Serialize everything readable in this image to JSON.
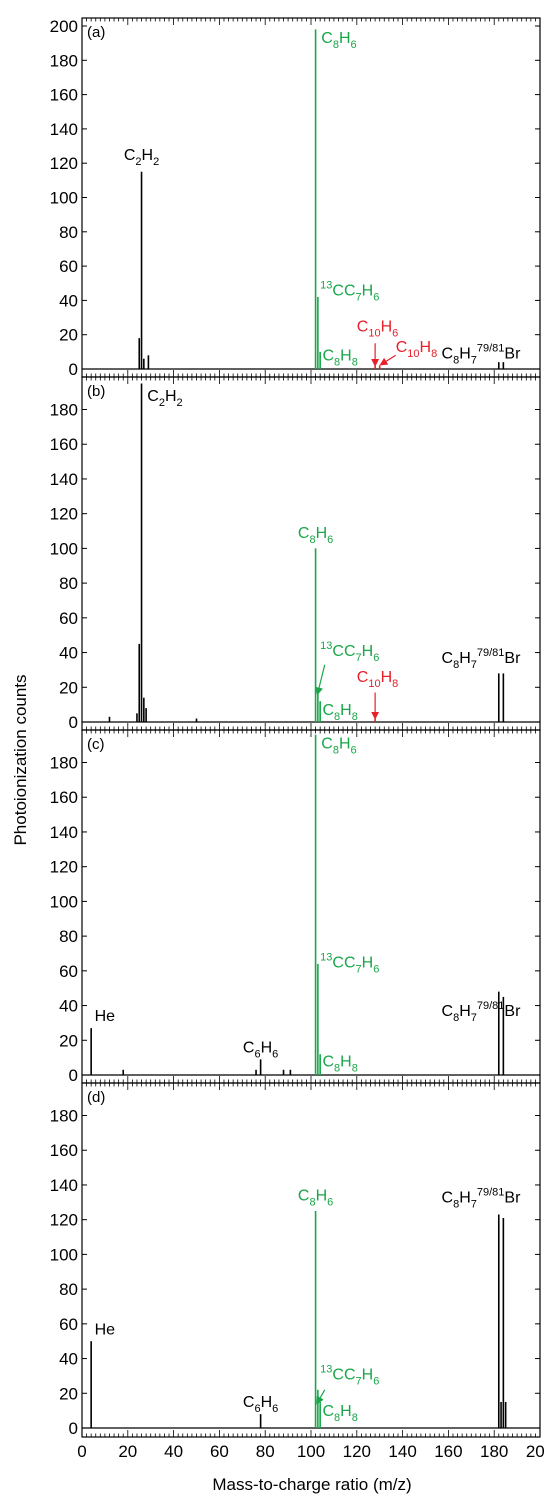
{
  "figure": {
    "ylabel": "Photoionization counts",
    "xlabel": "Mass-to-charge ratio (m/z)"
  },
  "colors": {
    "black": "#000000",
    "green": "#1aa64a",
    "red": "#e8202a"
  },
  "chart_data": [
    {
      "type": "line",
      "panel": "(a)",
      "xlim": [
        0,
        200
      ],
      "ylim": [
        0,
        200
      ],
      "yticks": [
        0,
        20,
        40,
        60,
        80,
        100,
        120,
        140,
        160,
        180,
        200
      ],
      "xticks": [
        0,
        20,
        40,
        60,
        80,
        100,
        120,
        140,
        160,
        180,
        200
      ],
      "show_xtick_labels": false,
      "peaks": [
        {
          "x": 25,
          "y": 18,
          "color": "black"
        },
        {
          "x": 26,
          "y": 115,
          "color": "black"
        },
        {
          "x": 27,
          "y": 6,
          "color": "black"
        },
        {
          "x": 29,
          "y": 8,
          "color": "black"
        },
        {
          "x": 102,
          "y": 198,
          "color": "green"
        },
        {
          "x": 103,
          "y": 42,
          "color": "green"
        },
        {
          "x": 104,
          "y": 10,
          "color": "green"
        },
        {
          "x": 128,
          "y": 2,
          "color": "red"
        },
        {
          "x": 130,
          "y": 2,
          "color": "red"
        },
        {
          "x": 182,
          "y": 4,
          "color": "black"
        },
        {
          "x": 184,
          "y": 4,
          "color": "black"
        }
      ],
      "labels": [
        {
          "parts": [
            [
              "C",
              ""
            ],
            [
              "2",
              "sub"
            ],
            [
              "H",
              ""
            ],
            [
              "2",
              "sub"
            ]
          ],
          "x": 26,
          "y": 122,
          "color": "black",
          "anchor": "middle"
        },
        {
          "parts": [
            [
              "C",
              ""
            ],
            [
              "8",
              "sub"
            ],
            [
              "H",
              ""
            ],
            [
              "6",
              "sub"
            ]
          ],
          "x": 104.5,
          "y": 190,
          "color": "green",
          "anchor": "start"
        },
        {
          "parts": [
            [
              "13",
              "sup"
            ],
            [
              "CC",
              ""
            ],
            [
              "7",
              "sub"
            ],
            [
              "H",
              ""
            ],
            [
              "6",
              "sub"
            ]
          ],
          "x": 104,
          "y": 43,
          "color": "green",
          "anchor": "start"
        },
        {
          "parts": [
            [
              "C",
              ""
            ],
            [
              "10",
              "sub"
            ],
            [
              "H",
              ""
            ],
            [
              "6",
              "sub"
            ]
          ],
          "x": 120,
          "y": 22,
          "color": "red",
          "anchor": "start"
        },
        {
          "parts": [
            [
              "C",
              ""
            ],
            [
              "10",
              "sub"
            ],
            [
              "H",
              ""
            ],
            [
              "8",
              "sub"
            ]
          ],
          "x": 137,
          "y": 10,
          "color": "red",
          "anchor": "start"
        },
        {
          "parts": [
            [
              "C",
              ""
            ],
            [
              "8",
              "sub"
            ],
            [
              "H",
              ""
            ],
            [
              "8",
              "sub"
            ]
          ],
          "x": 105,
          "y": 5,
          "color": "green",
          "anchor": "start"
        },
        {
          "parts": [
            [
              "C",
              ""
            ],
            [
              "8",
              "sub"
            ],
            [
              "H",
              ""
            ],
            [
              "7",
              "sub"
            ],
            [
              "79/81",
              "sup"
            ],
            [
              "Br",
              ""
            ]
          ],
          "x": 157,
          "y": 6,
          "color": "black",
          "anchor": "start"
        }
      ],
      "arrows": [
        {
          "x1": 128,
          "y1": 15,
          "x2": 128,
          "y2": 3,
          "color": "red"
        },
        {
          "x1": 137,
          "y1": 8,
          "x2": 131,
          "y2": 3,
          "color": "red"
        }
      ]
    },
    {
      "type": "line",
      "panel": "(b)",
      "xlim": [
        0,
        200
      ],
      "ylim": [
        0,
        197
      ],
      "yticks": [
        0,
        20,
        40,
        60,
        80,
        100,
        120,
        140,
        160,
        180
      ],
      "xticks": [
        0,
        20,
        40,
        60,
        80,
        100,
        120,
        140,
        160,
        180,
        200
      ],
      "show_xtick_labels": false,
      "peaks": [
        {
          "x": 12,
          "y": 3,
          "color": "black"
        },
        {
          "x": 24,
          "y": 5,
          "color": "black"
        },
        {
          "x": 25,
          "y": 45,
          "color": "black"
        },
        {
          "x": 26,
          "y": 195,
          "color": "black"
        },
        {
          "x": 27,
          "y": 14,
          "color": "black"
        },
        {
          "x": 28,
          "y": 8,
          "color": "black"
        },
        {
          "x": 50,
          "y": 2,
          "color": "black"
        },
        {
          "x": 102,
          "y": 100,
          "color": "green"
        },
        {
          "x": 103,
          "y": 19,
          "color": "green"
        },
        {
          "x": 104,
          "y": 12,
          "color": "green"
        },
        {
          "x": 128,
          "y": 2,
          "color": "red"
        },
        {
          "x": 182,
          "y": 28,
          "color": "black"
        },
        {
          "x": 184,
          "y": 28,
          "color": "black"
        }
      ],
      "labels": [
        {
          "parts": [
            [
              "C",
              ""
            ],
            [
              "2",
              "sub"
            ],
            [
              "H",
              ""
            ],
            [
              "2",
              "sub"
            ]
          ],
          "x": 28.5,
          "y": 185,
          "color": "black",
          "anchor": "start"
        },
        {
          "parts": [
            [
              "C",
              ""
            ],
            [
              "8",
              "sub"
            ],
            [
              "H",
              ""
            ],
            [
              "6",
              "sub"
            ]
          ],
          "x": 102,
          "y": 106,
          "color": "green",
          "anchor": "middle"
        },
        {
          "parts": [
            [
              "13",
              "sup"
            ],
            [
              "CC",
              ""
            ],
            [
              "7",
              "sub"
            ],
            [
              "H",
              ""
            ],
            [
              "6",
              "sub"
            ]
          ],
          "x": 104,
          "y": 38,
          "color": "green",
          "anchor": "start"
        },
        {
          "parts": [
            [
              "C",
              ""
            ],
            [
              "10",
              "sub"
            ],
            [
              "H",
              ""
            ],
            [
              "8",
              "sub"
            ]
          ],
          "x": 120,
          "y": 23,
          "color": "red",
          "anchor": "start"
        },
        {
          "parts": [
            [
              "C",
              ""
            ],
            [
              "8",
              "sub"
            ],
            [
              "H",
              ""
            ],
            [
              "8",
              "sub"
            ]
          ],
          "x": 105,
          "y": 4,
          "color": "green",
          "anchor": "start"
        },
        {
          "parts": [
            [
              "C",
              ""
            ],
            [
              "8",
              "sub"
            ],
            [
              "H",
              ""
            ],
            [
              "7",
              "sub"
            ],
            [
              "79/81",
              "sup"
            ],
            [
              "Br",
              ""
            ]
          ],
          "x": 157,
          "y": 34,
          "color": "black",
          "anchor": "start"
        }
      ],
      "arrows": [
        {
          "x1": 128,
          "y1": 17,
          "x2": 128,
          "y2": 3,
          "color": "red"
        },
        {
          "x1": 106,
          "y1": 33,
          "x2": 103,
          "y2": 17,
          "color": "green"
        }
      ]
    },
    {
      "type": "line",
      "panel": "(c)",
      "xlim": [
        0,
        200
      ],
      "ylim": [
        0,
        197
      ],
      "yticks": [
        0,
        20,
        40,
        60,
        80,
        100,
        120,
        140,
        160,
        180
      ],
      "xticks": [
        0,
        20,
        40,
        60,
        80,
        100,
        120,
        140,
        160,
        180,
        200
      ],
      "show_xtick_labels": false,
      "peaks": [
        {
          "x": 4,
          "y": 27,
          "color": "black"
        },
        {
          "x": 18,
          "y": 3,
          "color": "black"
        },
        {
          "x": 76,
          "y": 3,
          "color": "black"
        },
        {
          "x": 78,
          "y": 9,
          "color": "black"
        },
        {
          "x": 88,
          "y": 3,
          "color": "black"
        },
        {
          "x": 91,
          "y": 3,
          "color": "black"
        },
        {
          "x": 102,
          "y": 196,
          "color": "green"
        },
        {
          "x": 103,
          "y": 64,
          "color": "green"
        },
        {
          "x": 104,
          "y": 12,
          "color": "green"
        },
        {
          "x": 182,
          "y": 48,
          "color": "black"
        },
        {
          "x": 184,
          "y": 45,
          "color": "black"
        }
      ],
      "labels": [
        {
          "parts": [
            [
              "He",
              ""
            ]
          ],
          "x": 5.5,
          "y": 31,
          "color": "black",
          "anchor": "start"
        },
        {
          "parts": [
            [
              "C",
              ""
            ],
            [
              "6",
              "sub"
            ],
            [
              "H",
              ""
            ],
            [
              "6",
              "sub"
            ]
          ],
          "x": 78,
          "y": 13,
          "color": "black",
          "anchor": "middle"
        },
        {
          "parts": [
            [
              "C",
              ""
            ],
            [
              "8",
              "sub"
            ],
            [
              "H",
              ""
            ],
            [
              "6",
              "sub"
            ]
          ],
          "x": 104.5,
          "y": 188,
          "color": "green",
          "anchor": "start"
        },
        {
          "parts": [
            [
              "13",
              "sup"
            ],
            [
              "CC",
              ""
            ],
            [
              "7",
              "sub"
            ],
            [
              "H",
              ""
            ],
            [
              "6",
              "sub"
            ]
          ],
          "x": 104,
          "y": 62,
          "color": "green",
          "anchor": "start"
        },
        {
          "parts": [
            [
              "C",
              ""
            ],
            [
              "8",
              "sub"
            ],
            [
              "H",
              ""
            ],
            [
              "8",
              "sub"
            ]
          ],
          "x": 105,
          "y": 5,
          "color": "green",
          "anchor": "start"
        },
        {
          "parts": [
            [
              "C",
              ""
            ],
            [
              "8",
              "sub"
            ],
            [
              "H",
              ""
            ],
            [
              "7",
              "sub"
            ],
            [
              "79/81",
              "sup"
            ],
            [
              "Br",
              ""
            ]
          ],
          "x": 157,
          "y": 34,
          "color": "black",
          "anchor": "start"
        }
      ],
      "arrows": []
    },
    {
      "type": "line",
      "panel": "(d)",
      "xlim": [
        0,
        200
      ],
      "ylim": [
        0,
        197
      ],
      "yticks": [
        0,
        20,
        40,
        60,
        80,
        100,
        120,
        140,
        160,
        180
      ],
      "xticks": [
        0,
        20,
        40,
        60,
        80,
        100,
        120,
        140,
        160,
        180,
        200
      ],
      "xtick_labels": [
        "0",
        "20",
        "40",
        "60",
        "80",
        "100",
        "120",
        "140",
        "160",
        "180",
        "200"
      ],
      "show_xtick_labels": true,
      "peaks": [
        {
          "x": 4,
          "y": 50,
          "color": "black"
        },
        {
          "x": 78,
          "y": 8,
          "color": "black"
        },
        {
          "x": 102,
          "y": 125,
          "color": "green"
        },
        {
          "x": 103,
          "y": 22,
          "color": "green"
        },
        {
          "x": 104,
          "y": 15,
          "color": "green"
        },
        {
          "x": 182,
          "y": 123,
          "color": "black"
        },
        {
          "x": 183,
          "y": 15,
          "color": "black"
        },
        {
          "x": 184,
          "y": 121,
          "color": "black"
        },
        {
          "x": 185,
          "y": 15,
          "color": "black"
        }
      ],
      "labels": [
        {
          "parts": [
            [
              "He",
              ""
            ]
          ],
          "x": 5.5,
          "y": 54,
          "color": "black",
          "anchor": "start"
        },
        {
          "parts": [
            [
              "C",
              ""
            ],
            [
              "6",
              "sub"
            ],
            [
              "H",
              ""
            ],
            [
              "6",
              "sub"
            ]
          ],
          "x": 78,
          "y": 12,
          "color": "black",
          "anchor": "middle"
        },
        {
          "parts": [
            [
              "C",
              ""
            ],
            [
              "8",
              "sub"
            ],
            [
              "H",
              ""
            ],
            [
              "6",
              "sub"
            ]
          ],
          "x": 102,
          "y": 131,
          "color": "green",
          "anchor": "middle"
        },
        {
          "parts": [
            [
              "13",
              "sup"
            ],
            [
              "CC",
              ""
            ],
            [
              "7",
              "sub"
            ],
            [
              "H",
              ""
            ],
            [
              "6",
              "sub"
            ]
          ],
          "x": 104,
          "y": 28,
          "color": "green",
          "anchor": "start"
        },
        {
          "parts": [
            [
              "C",
              ""
            ],
            [
              "8",
              "sub"
            ],
            [
              "H",
              ""
            ],
            [
              "8",
              "sub"
            ]
          ],
          "x": 105,
          "y": 7,
          "color": "green",
          "anchor": "start"
        },
        {
          "parts": [
            [
              "C",
              ""
            ],
            [
              "8",
              "sub"
            ],
            [
              "H",
              ""
            ],
            [
              "7",
              "sub"
            ],
            [
              "79/81",
              "sup"
            ],
            [
              "Br",
              ""
            ]
          ],
          "x": 157,
          "y": 130,
          "color": "black",
          "anchor": "start"
        }
      ],
      "arrows": [
        {
          "x1": 106,
          "y1": 22,
          "x2": 103,
          "y2": 15,
          "color": "green"
        }
      ]
    }
  ]
}
